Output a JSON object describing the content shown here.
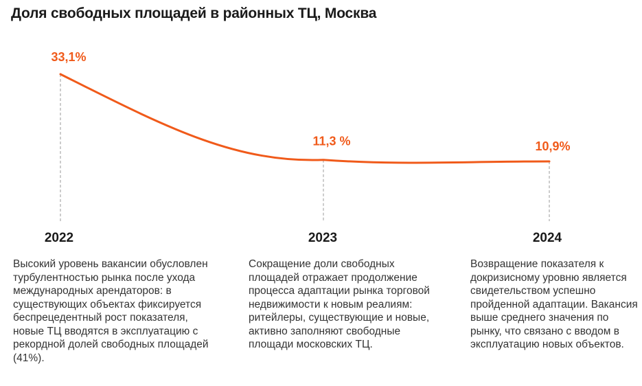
{
  "title": "Доля свободных площадей в районных ТЦ, Москва",
  "accent_color": "#f05a1a",
  "chart_data": {
    "type": "line",
    "title": "Доля свободных площадей в районных ТЦ, Москва",
    "categories": [
      "2022",
      "2023",
      "2024"
    ],
    "series": [
      {
        "values": [
          33.1,
          11.3,
          10.9
        ],
        "labels": [
          "33,1%",
          "11,3 %",
          "10,9%"
        ],
        "color": "#f05a1a"
      }
    ],
    "grid": false,
    "legend": "none"
  },
  "descriptions": [
    "Высокий уровень вакансии обусловлен турбулентностью рынка после ухода международных арендаторов: в существующих объектах фиксируется беспрецедентный рост показателя, новые ТЦ вводятся в эксплуатацию с рекордной долей свободных площадей (41%).",
    "Сокращение доли свободных площадей отражает продолжение процесса адаптации рынка торговой недвижимости к новым реалиям: ритейлеры, существующие и новые, активно заполняют свободные площади московских ТЦ.",
    "Возвращение показателя к докризисному уровню является свидетельством успешно пройденной адаптации. Вакансия выше среднего значения по рынку, что связано с вводом в эксплуатацию новых объектов."
  ]
}
